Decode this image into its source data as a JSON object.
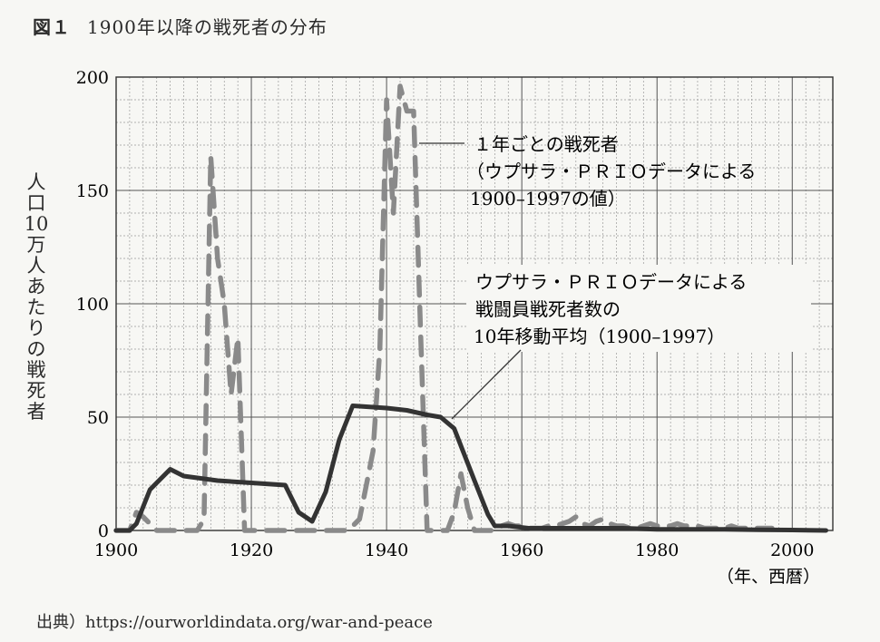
{
  "figure": {
    "label": "図１",
    "title": "1900年以降の戦死者の分布"
  },
  "source": "出典）https://ourworldindata.org/war-and-peace",
  "chart_data": {
    "type": "line",
    "title": "1900年以降の戦死者の分布",
    "ylabel": "人口10万人あたりの戦死者",
    "xlabel": "（年、西暦）",
    "xlim": [
      1900,
      2006
    ],
    "ylim": [
      0,
      200
    ],
    "x_ticks": [
      1900,
      1920,
      1940,
      1960,
      1980,
      2000
    ],
    "y_ticks": [
      0,
      50,
      100,
      150,
      200
    ],
    "x_tick_labels": [
      "1900",
      "1920",
      "1940",
      "1960",
      "1980",
      "2000"
    ],
    "y_tick_labels": [
      "0",
      "50",
      "100",
      "150",
      "200"
    ],
    "grid": true,
    "series": [
      {
        "name": "1年ごとの戦死者（ウプサラ・ＰＲＩＯデータによる1900–1997の値）",
        "style": "dashed",
        "color": "#8a8a8a",
        "x": [
          1900,
          1901,
          1902,
          1903,
          1904,
          1905,
          1906,
          1907,
          1908,
          1909,
          1910,
          1911,
          1912,
          1913,
          1914,
          1915,
          1916,
          1917,
          1918,
          1919,
          1920,
          1921,
          1922,
          1923,
          1924,
          1925,
          1926,
          1927,
          1928,
          1929,
          1930,
          1931,
          1932,
          1933,
          1934,
          1935,
          1936,
          1937,
          1938,
          1939,
          1940,
          1941,
          1942,
          1943,
          1944,
          1945,
          1946,
          1947,
          1948,
          1949,
          1950,
          1951,
          1952,
          1953,
          1954,
          1955,
          1956,
          1957,
          1958,
          1959,
          1960,
          1961,
          1962,
          1963,
          1964,
          1965,
          1966,
          1967,
          1968,
          1969,
          1970,
          1971,
          1972,
          1973,
          1974,
          1975,
          1976,
          1977,
          1978,
          1979,
          1980,
          1981,
          1982,
          1983,
          1984,
          1985,
          1986,
          1987,
          1988,
          1989,
          1990,
          1991,
          1992,
          1993,
          1994,
          1995,
          1996,
          1997
        ],
        "values": [
          0,
          0,
          0,
          8,
          6,
          3,
          0,
          0,
          0,
          0,
          0,
          0,
          0,
          5,
          165,
          120,
          100,
          60,
          85,
          0,
          0,
          0,
          0,
          0,
          0,
          0,
          0,
          0,
          0,
          0,
          0,
          0,
          0,
          0,
          0,
          2,
          5,
          20,
          35,
          80,
          190,
          140,
          196,
          185,
          185,
          90,
          0,
          0,
          0,
          0,
          8,
          25,
          10,
          0,
          0,
          0,
          0,
          2,
          3,
          2,
          2,
          1,
          1,
          1,
          2,
          2,
          3,
          4,
          6,
          3,
          2,
          4,
          5,
          3,
          2,
          2,
          1,
          1,
          2,
          3,
          2,
          2,
          2,
          3,
          2,
          2,
          2,
          1,
          1,
          1,
          1,
          2,
          1,
          1,
          1,
          1,
          1,
          1
        ]
      },
      {
        "name": "ウプサラ・ＰＲＩＯデータによる戦闘員戦死者数の10年移動平均（1900–1997）",
        "style": "solid",
        "color": "#333333",
        "x": [
          1900,
          1902,
          1903,
          1905,
          1906,
          1908,
          1910,
          1915,
          1920,
          1925,
          1927,
          1929,
          1931,
          1933,
          1935,
          1940,
          1943,
          1946,
          1948,
          1950,
          1953,
          1955,
          1956,
          1958,
          1961,
          1965,
          1970,
          1975,
          1980,
          1985,
          1990,
          1995,
          2000,
          2005
        ],
        "values": [
          0,
          0,
          3,
          18,
          21,
          27,
          24,
          22,
          21,
          20,
          8,
          4,
          17,
          40,
          55,
          54,
          53,
          51,
          50,
          45,
          22,
          7,
          2,
          2,
          1,
          1,
          1,
          1,
          0.5,
          0.5,
          0.5,
          0.3,
          0.2,
          0
        ]
      }
    ],
    "annotations": [
      {
        "text_lines": [
          "１年ごとの戦死者",
          "（ウプサラ・ＰＲＩＯデータによる",
          "1900–1997の値）"
        ],
        "target_series": 0
      },
      {
        "text_lines": [
          "ウプサラ・ＰＲＩＯデータによる",
          "戦闘員戦死者数の",
          "10年移動平均（1900–1997）"
        ],
        "target_series": 1
      }
    ]
  }
}
